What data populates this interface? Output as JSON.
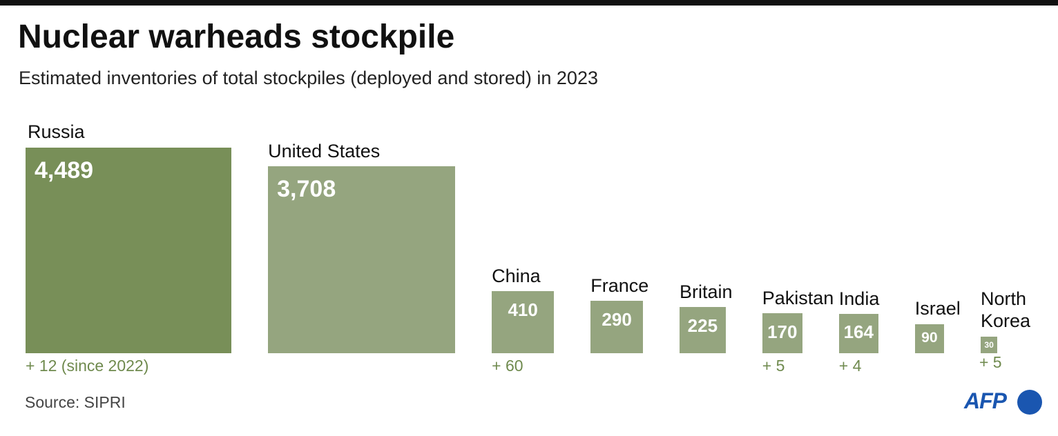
{
  "chart_data": {
    "type": "proportional-square",
    "title": "Nuclear warheads stockpile",
    "subtitle": "Estimated inventories of total stockpiles (deployed and stored) in 2023",
    "categories": [
      "Russia",
      "United States",
      "China",
      "France",
      "Britain",
      "Pakistan",
      "India",
      "Israel",
      "North Korea"
    ],
    "values": [
      4489,
      3708,
      410,
      290,
      225,
      170,
      164,
      90,
      30
    ],
    "value_labels": [
      "4,489",
      "3,708",
      "410",
      "290",
      "225",
      "170",
      "164",
      "90",
      "30"
    ],
    "change_labels": [
      "+ 12 (since 2022)",
      null,
      "+ 60",
      null,
      null,
      "+ 5",
      "+ 4",
      null,
      "+ 5"
    ],
    "colors": [
      "#788f58",
      "#95a57f",
      "#95a57f",
      "#95a57f",
      "#95a57f",
      "#95a57f",
      "#95a57f",
      "#95a57f",
      "#95a57f"
    ],
    "source": "Source: SIPRI",
    "credit": "AFP"
  }
}
